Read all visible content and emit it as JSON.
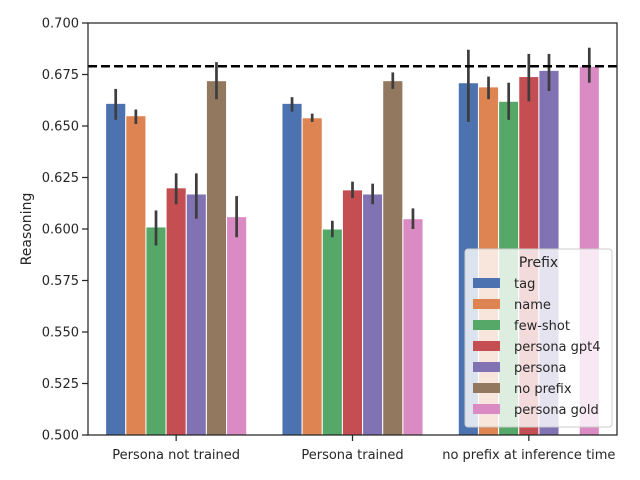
{
  "chart_data": {
    "type": "bar",
    "title": "",
    "xlabel": "",
    "ylabel": "Reasoning",
    "ylim": [
      0.5,
      0.7
    ],
    "yticks": [
      "0.500",
      "0.525",
      "0.550",
      "0.575",
      "0.600",
      "0.625",
      "0.650",
      "0.675",
      "0.700"
    ],
    "categories": [
      "Persona not trained",
      "Persona trained",
      "no prefix at inference time"
    ],
    "reference_line": 0.679,
    "legend": {
      "title": "Prefix",
      "position": "lower-right"
    },
    "series": [
      {
        "name": "tag",
        "color": "#4c72b0",
        "values": [
          0.661,
          0.661,
          0.671
        ],
        "err_low": [
          0.653,
          0.657,
          0.652
        ],
        "err_high": [
          0.668,
          0.664,
          0.687
        ]
      },
      {
        "name": "name",
        "color": "#dd8452",
        "values": [
          0.655,
          0.654,
          0.669
        ],
        "err_low": [
          0.651,
          0.652,
          0.663
        ],
        "err_high": [
          0.658,
          0.656,
          0.674
        ]
      },
      {
        "name": "few-shot",
        "color": "#55a868",
        "values": [
          0.601,
          0.6,
          0.662
        ],
        "err_low": [
          0.592,
          0.596,
          0.653
        ],
        "err_high": [
          0.609,
          0.604,
          0.671
        ]
      },
      {
        "name": "persona gpt4",
        "color": "#c44e52",
        "values": [
          0.62,
          0.619,
          0.674
        ],
        "err_low": [
          0.612,
          0.615,
          0.662
        ],
        "err_high": [
          0.627,
          0.623,
          0.685
        ]
      },
      {
        "name": "persona",
        "color": "#8172b3",
        "values": [
          0.617,
          0.617,
          0.677
        ],
        "err_low": [
          0.605,
          0.612,
          0.667
        ],
        "err_high": [
          0.627,
          0.622,
          0.685
        ]
      },
      {
        "name": "no prefix",
        "color": "#937860",
        "values": [
          0.672,
          0.672,
          null
        ],
        "err_low": [
          0.663,
          0.668,
          null
        ],
        "err_high": [
          0.681,
          0.676,
          null
        ]
      },
      {
        "name": "persona gold",
        "color": "#da8bc3",
        "values": [
          0.606,
          0.605,
          0.679
        ],
        "err_low": [
          0.596,
          0.6,
          0.671
        ],
        "err_high": [
          0.616,
          0.61,
          0.688
        ]
      }
    ]
  }
}
